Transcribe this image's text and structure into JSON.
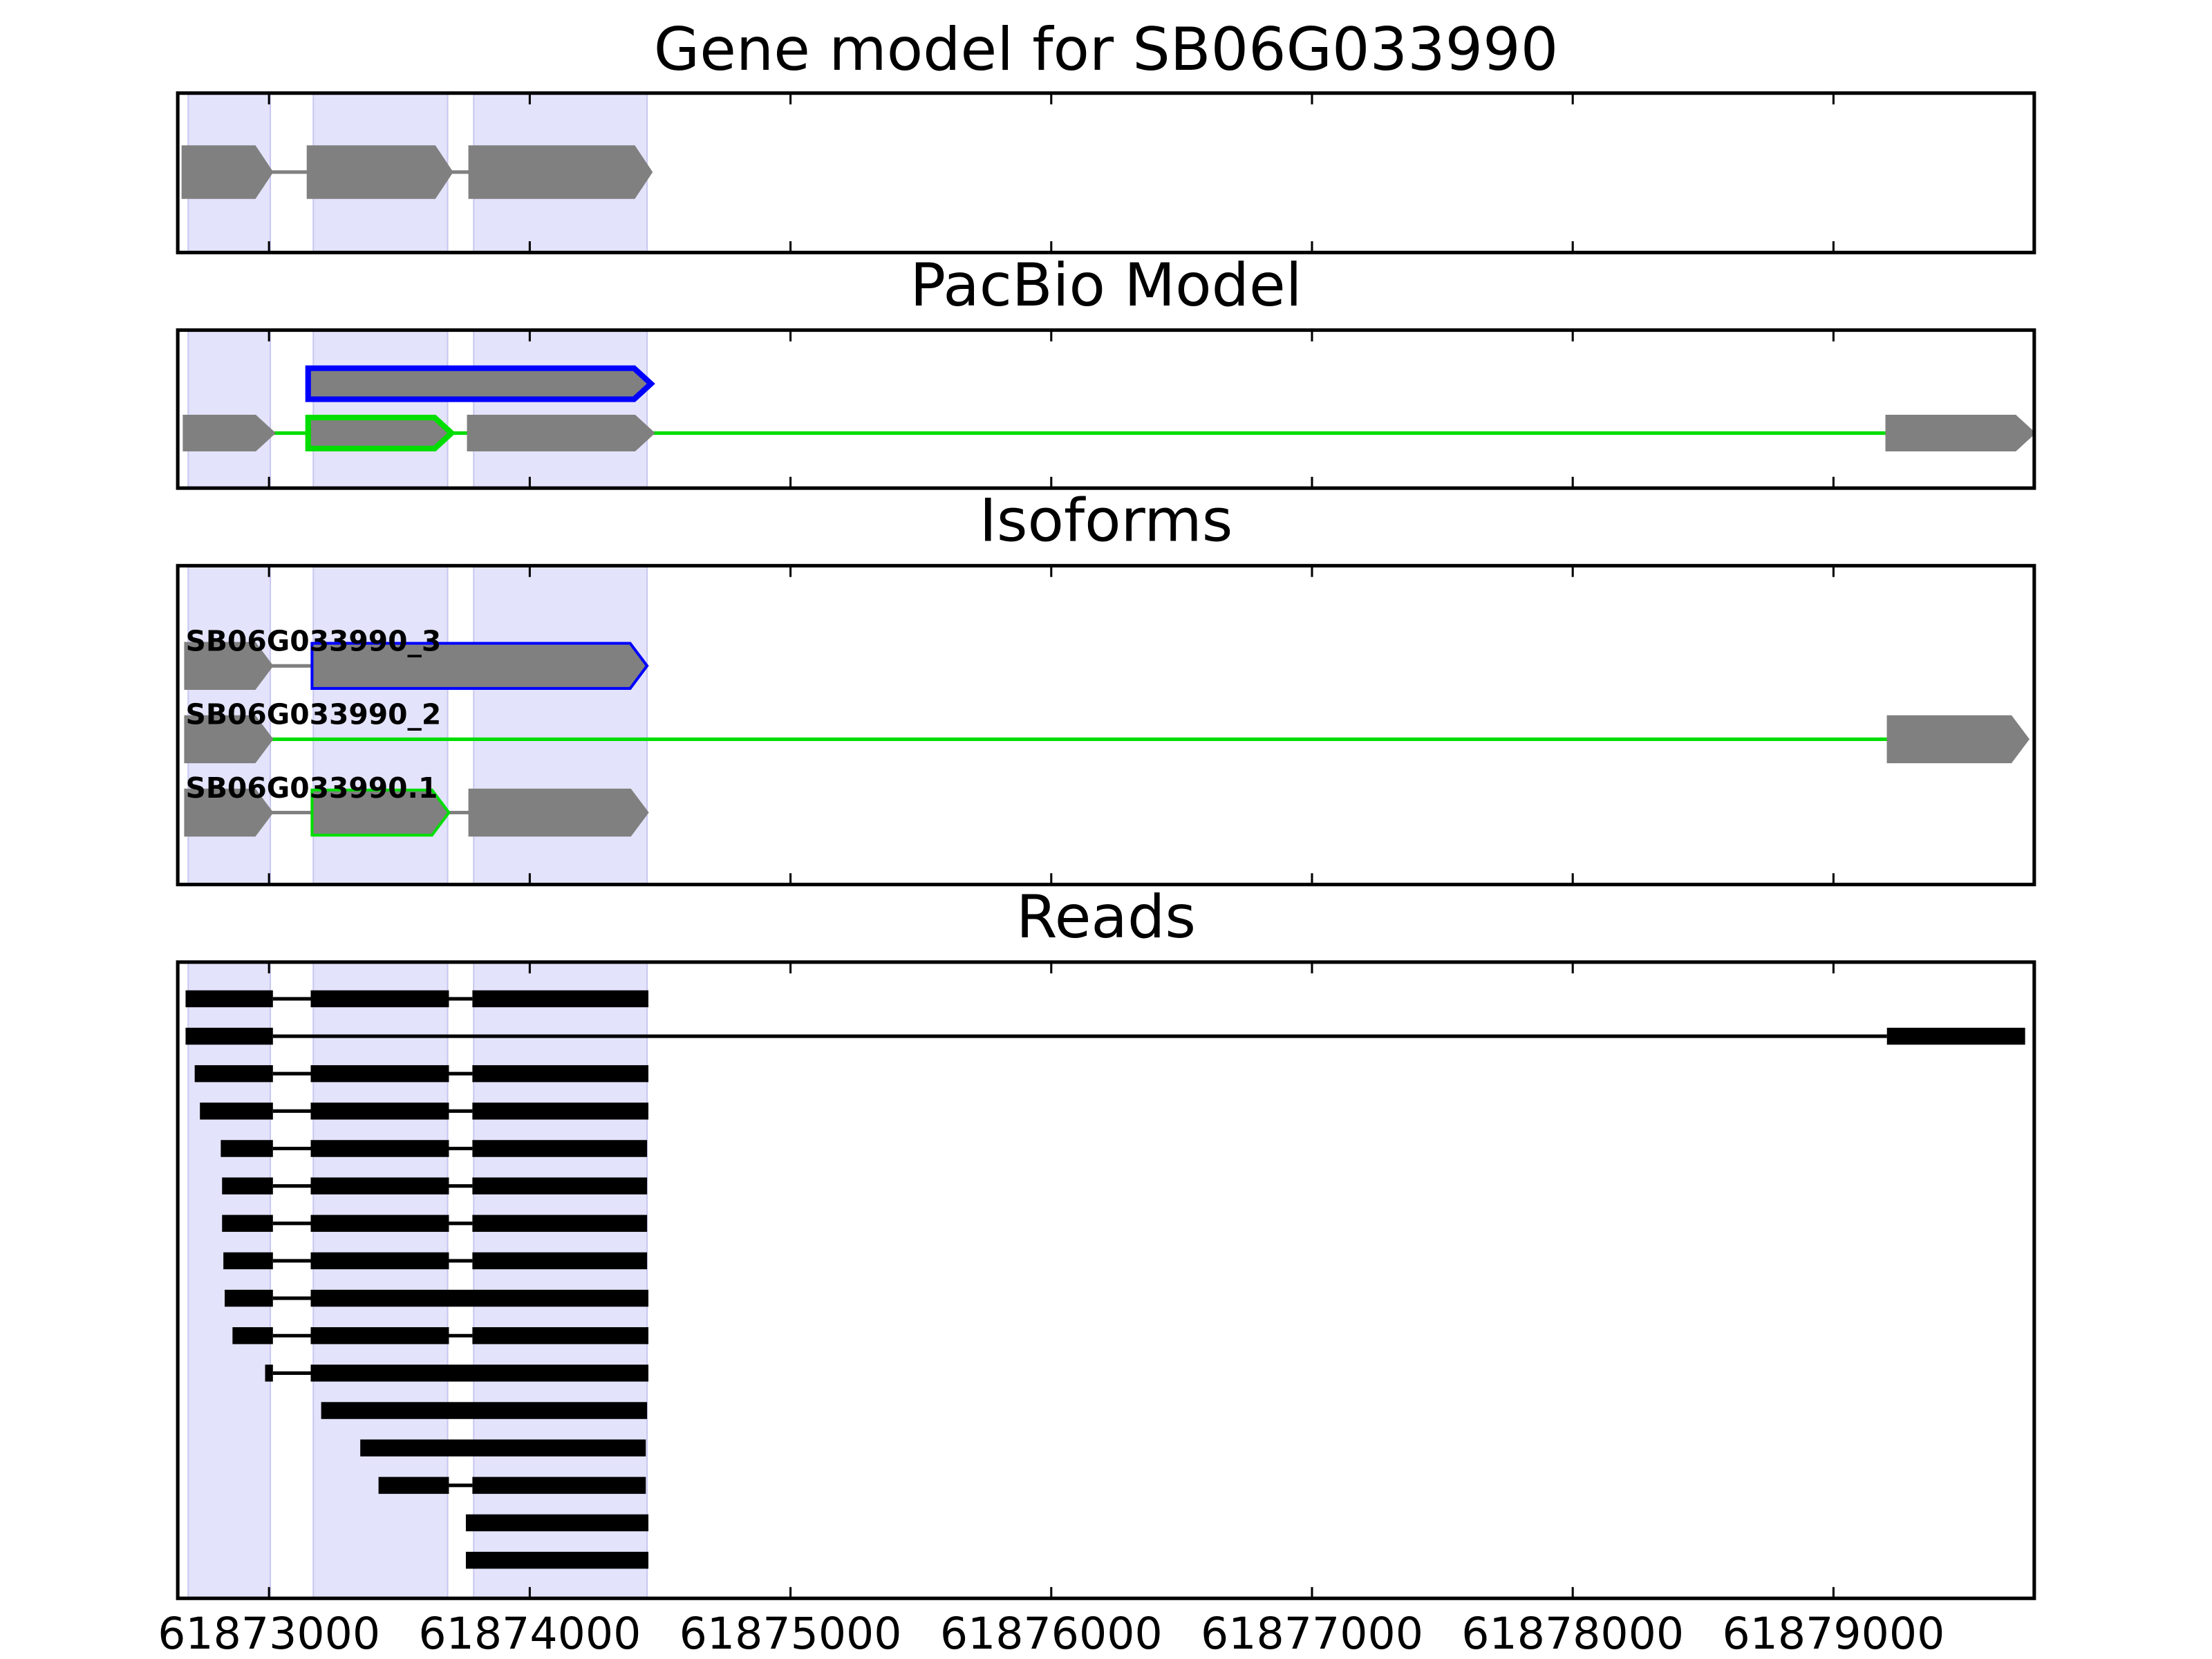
{
  "chart_data": [
    {
      "type": "track",
      "title": "Gene model for SB06G033990",
      "xlim": [
        61872650,
        61879770
      ],
      "xticks": [
        61873000,
        61874000,
        61875000,
        61876000,
        61877000,
        61878000,
        61879000
      ],
      "highlights": [
        [
          61872690,
          61873005
        ],
        [
          61873170,
          61873685
        ],
        [
          61873785,
          61874450
        ]
      ],
      "highlight_color": "#e3e3fb",
      "transcripts": [
        {
          "exons": [
            [
              61872670,
              61873010
            ],
            [
              61873150,
              61873700
            ],
            [
              61873770,
              61874465
            ]
          ],
          "edges": [
            "#808080",
            "#808080",
            "#808080"
          ],
          "line": "#808080"
        }
      ]
    },
    {
      "type": "track",
      "title": "PacBio Model",
      "xlim": [
        61872650,
        61879770
      ],
      "xticks": [
        61873000,
        61874000,
        61875000,
        61876000,
        61877000,
        61878000,
        61879000
      ],
      "highlights": [
        [
          61872690,
          61873005
        ],
        [
          61873170,
          61873685
        ],
        [
          61873785,
          61874450
        ]
      ],
      "highlight_color": "#e3e3fb",
      "transcripts": [
        {
          "exons": [
            [
              61873150,
              61874465
            ]
          ],
          "edges": [
            "#0000ff"
          ],
          "line": "#808080"
        },
        {
          "exons": [
            [
              61872680,
              61873010
            ],
            [
              61873150,
              61873700
            ],
            [
              61873770,
              61874465
            ],
            [
              61879210,
              61879760
            ]
          ],
          "edges": [
            "#808080",
            "#00dd00",
            "#808080",
            "#808080"
          ],
          "line": "#00dd00"
        }
      ]
    },
    {
      "type": "track",
      "title": "Isoforms",
      "xlim": [
        61872650,
        61879770
      ],
      "xticks": [
        61873000,
        61874000,
        61875000,
        61876000,
        61877000,
        61878000,
        61879000
      ],
      "highlights": [
        [
          61872690,
          61873005
        ],
        [
          61873170,
          61873685
        ],
        [
          61873785,
          61874450
        ]
      ],
      "highlight_color": "#e3e3fb",
      "transcripts": [
        {
          "name": "SB06G033990_3",
          "exons": [
            [
              61872680,
              61873010
            ],
            [
              61873165,
              61874450
            ]
          ],
          "edges": [
            "#808080",
            "#0000ff"
          ],
          "line": "#808080"
        },
        {
          "name": "SB06G033990_2",
          "exons": [
            [
              61872680,
              61873010
            ],
            [
              61879210,
              61879745
            ]
          ],
          "edges": [
            "#808080",
            "#808080"
          ],
          "line": "#00dd00"
        },
        {
          "name": "SB06G033990.1",
          "exons": [
            [
              61872680,
              61873010
            ],
            [
              61873165,
              61873690
            ],
            [
              61873770,
              61874450
            ]
          ],
          "edges": [
            "#808080",
            "#00dd00",
            "#808080"
          ],
          "line": "#808080"
        }
      ]
    },
    {
      "type": "reads",
      "title": "Reads",
      "xlim": [
        61872650,
        61879770
      ],
      "xticks": [
        61873000,
        61874000,
        61875000,
        61876000,
        61877000,
        61878000,
        61879000
      ],
      "highlights": [
        [
          61872690,
          61873005
        ],
        [
          61873170,
          61873685
        ],
        [
          61873785,
          61874450
        ]
      ],
      "highlight_color": "#e3e3fb",
      "color": "#000000",
      "reads": [
        [
          [
            61872680,
            61873015
          ],
          [
            61873160,
            61873690
          ],
          [
            61873780,
            61874455
          ]
        ],
        [
          [
            61872680,
            61873015
          ],
          [
            61879205,
            61879735
          ]
        ],
        [
          [
            61872715,
            61873015
          ],
          [
            61873160,
            61873690
          ],
          [
            61873780,
            61874455
          ]
        ],
        [
          [
            61872735,
            61873015
          ],
          [
            61873160,
            61873690
          ],
          [
            61873780,
            61874455
          ]
        ],
        [
          [
            61872815,
            61873015
          ],
          [
            61873160,
            61873690
          ],
          [
            61873780,
            61874450
          ]
        ],
        [
          [
            61872820,
            61873015
          ],
          [
            61873160,
            61873690
          ],
          [
            61873780,
            61874450
          ]
        ],
        [
          [
            61872820,
            61873015
          ],
          [
            61873160,
            61873690
          ],
          [
            61873780,
            61874450
          ]
        ],
        [
          [
            61872825,
            61873015
          ],
          [
            61873160,
            61873690
          ],
          [
            61873780,
            61874450
          ]
        ],
        [
          [
            61872830,
            61873015
          ],
          [
            61873160,
            61874455
          ]
        ],
        [
          [
            61872860,
            61873015
          ],
          [
            61873160,
            61873690
          ],
          [
            61873780,
            61874455
          ]
        ],
        [
          [
            61872985,
            61873015
          ],
          [
            61873160,
            61874455
          ]
        ],
        [
          [
            61873200,
            61874450
          ]
        ],
        [
          [
            61873350,
            61874445
          ]
        ],
        [
          [
            61873420,
            61873690
          ],
          [
            61873780,
            61874445
          ]
        ],
        [
          [
            61873755,
            61874455
          ]
        ],
        [
          [
            61873755,
            61874455
          ]
        ]
      ]
    }
  ]
}
